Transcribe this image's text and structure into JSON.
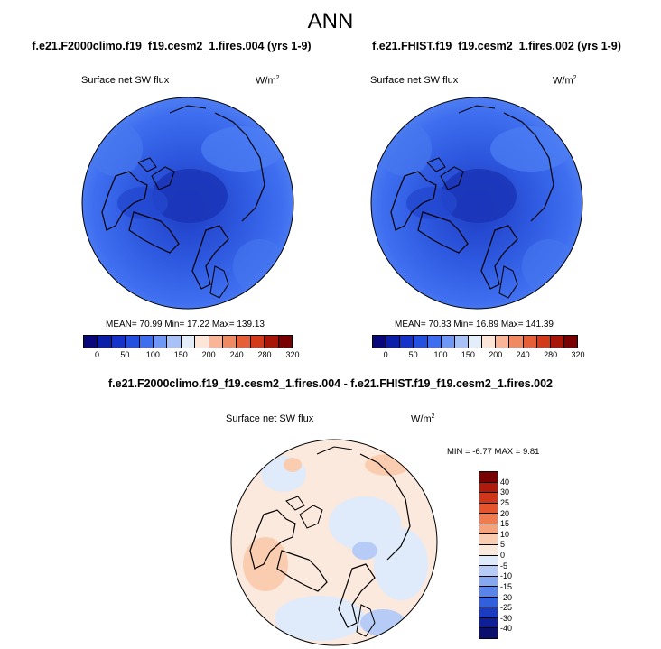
{
  "title": "ANN",
  "panels": [
    {
      "case": "f.e21.F2000climo.f19_f19.cesm2_1.fires.004 (yrs 1-9)",
      "variable": "Surface net SW flux",
      "units": "W/m",
      "units_exp": "2",
      "stats": "MEAN=  70.99  Min=  17.22  Max= 139.13"
    },
    {
      "case": "f.e21.FHIST.f19_f19.cesm2_1.fires.002 (yrs 1-9)",
      "variable": "Surface net SW flux",
      "units": "W/m",
      "units_exp": "2",
      "stats": "MEAN=  70.83  Min=  16.89  Max= 141.39"
    }
  ],
  "diff": {
    "title": "f.e21.F2000climo.f19_f19.cesm2_1.fires.004 - f.e21.FHIST.f19_f19.cesm2_1.fires.002",
    "variable": "Surface net SW flux",
    "units": "W/m",
    "units_exp": "2",
    "minmax": "MIN =  -6.77 MAX =   9.81"
  },
  "colorbars": {
    "abs_labels": [
      "0",
      "50",
      "100",
      "150",
      "200",
      "240",
      "280",
      "320"
    ],
    "abs_colors": [
      "#08087a",
      "#0b1fa8",
      "#1533c8",
      "#2450e0",
      "#3d6ef0",
      "#6f97f5",
      "#a8c2f7",
      "#e4eefb",
      "#fde6d8",
      "#f9b596",
      "#f08a62",
      "#e55f39",
      "#d23a1a",
      "#a81608",
      "#780000"
    ],
    "diff_labels": [
      "40",
      "30",
      "25",
      "20",
      "15",
      "10",
      "5",
      "0",
      "-5",
      "-10",
      "-15",
      "-20",
      "-25",
      "-30",
      "-40"
    ],
    "diff_colors": [
      "#780000",
      "#b01a0a",
      "#d0361a",
      "#e4552e",
      "#ef7b4f",
      "#f5a37c",
      "#fbcdb0",
      "#fbe9dd",
      "#dfeafb",
      "#b6ccf6",
      "#86a8f1",
      "#5a84ea",
      "#325fdc",
      "#1c3cc0",
      "#0e1f98",
      "#0a0f6e"
    ]
  },
  "chart_data": [
    {
      "type": "heatmap",
      "projection": "polar stereographic (north)",
      "title": "f.e21.F2000climo.f19_f19.cesm2_1.fires.004 (yrs 1-9)",
      "variable": "Surface net SW flux",
      "units": "W/m2",
      "stats": {
        "mean": 70.99,
        "min": 17.22,
        "max": 139.13
      },
      "colorbar_levels": [
        0,
        50,
        100,
        150,
        200,
        240,
        280,
        320
      ]
    },
    {
      "type": "heatmap",
      "projection": "polar stereographic (north)",
      "title": "f.e21.FHIST.f19_f19.cesm2_1.fires.002 (yrs 1-9)",
      "variable": "Surface net SW flux",
      "units": "W/m2",
      "stats": {
        "mean": 70.83,
        "min": 16.89,
        "max": 141.39
      },
      "colorbar_levels": [
        0,
        50,
        100,
        150,
        200,
        240,
        280,
        320
      ]
    },
    {
      "type": "heatmap",
      "projection": "polar stereographic (north)",
      "title": "f.e21.F2000climo.f19_f19.cesm2_1.fires.004 - f.e21.FHIST.f19_f19.cesm2_1.fires.002",
      "variable": "Surface net SW flux",
      "units": "W/m2",
      "stats": {
        "min": -6.77,
        "max": 9.81
      },
      "colorbar_levels": [
        -40,
        -30,
        -25,
        -20,
        -15,
        -10,
        -5,
        0,
        5,
        10,
        15,
        20,
        25,
        30,
        40
      ]
    }
  ]
}
